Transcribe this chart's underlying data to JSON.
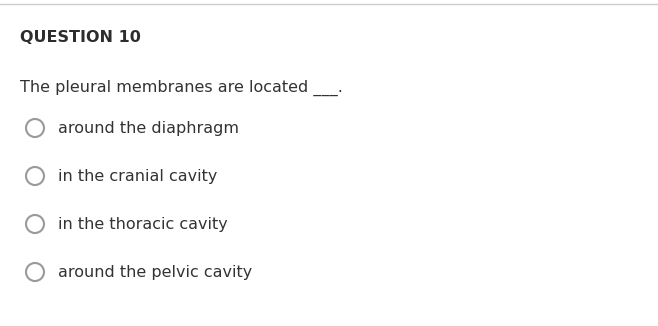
{
  "title": "QUESTION 10",
  "question": "The pleural membranes are located ___.",
  "options": [
    "around the diaphragm",
    "in the cranial cavity",
    "in the thoracic cavity",
    "around the pelvic cavity"
  ],
  "bg_color": "#ffffff",
  "title_color": "#2d2d2d",
  "text_color": "#333333",
  "top_border_color": "#cccccc",
  "circle_edge_color": "#999999",
  "title_fontsize": 11.5,
  "question_fontsize": 11.5,
  "option_fontsize": 11.5
}
